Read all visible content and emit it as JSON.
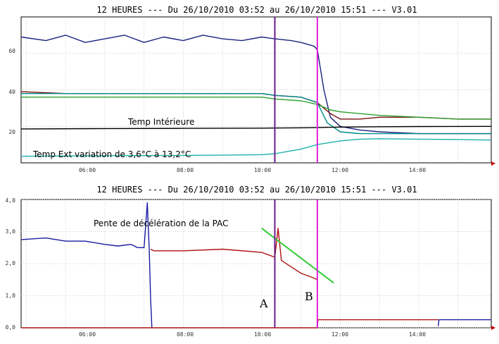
{
  "chart_data": [
    {
      "type": "line",
      "title": "12 HEURES --- Du 26/10/2010 03:52 au 26/10/2010 15:51 --- V3.01",
      "xlim": [
        "03:52",
        "15:51"
      ],
      "ylim": [
        0,
        80
      ],
      "y_ticks": [
        "20",
        "40",
        "60"
      ],
      "x_ticks": [
        "06:00",
        "08:00",
        "10:00",
        "12:00",
        "14:00"
      ],
      "grid": true,
      "annotations": [
        {
          "text": "Temp Intérieure"
        },
        {
          "text": "Temp Ext variation de 3,6°C à 13,2°C"
        }
      ],
      "markers": [
        {
          "x": "10:20",
          "color": "#6a1b8a"
        },
        {
          "x": "11:25",
          "color": "#e020e0"
        }
      ],
      "series": [
        {
          "color": "#1a237e",
          "x": [
            "03:52",
            "04:30",
            "05:00",
            "05:30",
            "06:00",
            "06:30",
            "07:00",
            "07:30",
            "08:00",
            "08:30",
            "09:00",
            "09:30",
            "10:00",
            "10:20",
            "10:45",
            "11:00",
            "11:20",
            "11:25",
            "11:35",
            "11:45",
            "12:00",
            "12:30",
            "13:00",
            "14:00",
            "15:00",
            "15:51"
          ],
          "values": [
            69,
            67,
            70,
            66,
            68,
            70,
            66,
            69,
            67,
            70,
            68,
            67,
            69,
            68,
            67,
            66,
            64,
            62,
            40,
            25,
            20,
            18,
            17,
            16,
            16,
            16
          ]
        },
        {
          "color": "#7a1010",
          "x": [
            "03:52",
            "05:00",
            "06:00",
            "07:00",
            "08:00",
            "09:00",
            "10:00",
            "10:20",
            "11:00",
            "11:25",
            "11:45",
            "12:00",
            "12:30",
            "13:00",
            "14:00",
            "15:00",
            "15:51"
          ],
          "values": [
            39,
            38,
            38,
            38,
            38,
            38,
            38,
            37,
            36,
            33,
            27,
            24,
            24,
            25,
            25,
            24,
            24
          ]
        },
        {
          "color": "#2ca02c",
          "x": [
            "03:52",
            "05:00",
            "06:00",
            "07:00",
            "08:00",
            "09:00",
            "10:00",
            "10:20",
            "11:00",
            "11:25",
            "11:45",
            "12:00",
            "13:00",
            "14:00",
            "15:00",
            "15:51"
          ],
          "values": [
            36,
            36,
            36,
            36,
            36,
            36,
            36,
            35,
            34,
            32,
            29,
            28,
            26,
            25,
            24,
            24
          ]
        },
        {
          "color": "#008b8b",
          "x": [
            "03:52",
            "05:00",
            "06:00",
            "07:00",
            "08:00",
            "09:00",
            "10:00",
            "10:20",
            "11:00",
            "11:25",
            "11:40",
            "12:00",
            "12:30",
            "13:00",
            "14:00",
            "15:00",
            "15:51"
          ],
          "values": [
            38,
            38,
            38,
            38,
            38,
            38,
            38,
            37,
            36,
            33,
            22,
            17,
            16,
            16,
            16,
            16,
            16
          ]
        },
        {
          "color": "#000000",
          "x": [
            "03:52",
            "06:00",
            "08:00",
            "10:00",
            "11:00",
            "12:00",
            "13:00",
            "14:00",
            "15:51"
          ],
          "values": [
            18.6,
            18.8,
            18.9,
            19.0,
            19.2,
            19.6,
            19.8,
            19.9,
            20.0
          ]
        },
        {
          "color": "#20b2aa",
          "x": [
            "03:52",
            "05:00",
            "06:00",
            "07:00",
            "08:00",
            "09:00",
            "10:00",
            "10:20",
            "11:00",
            "11:25",
            "12:00",
            "12:30",
            "13:00",
            "14:00",
            "15:00",
            "15:51"
          ],
          "values": [
            3.6,
            3.8,
            3.9,
            4.0,
            4.1,
            4.2,
            4.5,
            5.0,
            7.5,
            10.0,
            12.0,
            13.0,
            13.2,
            13.0,
            12.8,
            12.5
          ]
        }
      ]
    },
    {
      "type": "line",
      "title": "12 HEURES --- Du 26/10/2010 03:52 au 26/10/2010 15:51 --- V3.01",
      "xlim": [
        "03:52",
        "15:51"
      ],
      "ylim": [
        0,
        4
      ],
      "y_ticks": [
        "0,0",
        "1,0",
        "2,0",
        "3,0",
        "4,0"
      ],
      "x_ticks": [
        "06:00",
        "08:00",
        "10:00",
        "12:00",
        "14:00"
      ],
      "grid": true,
      "annotations": [
        {
          "text": "Pente de décélération de la PAC"
        },
        {
          "text": "A"
        },
        {
          "text": "B"
        }
      ],
      "markers": [
        {
          "x": "10:20",
          "color": "#6a1b8a"
        },
        {
          "x": "11:25",
          "color": "#e020e0"
        }
      ],
      "trend_line": {
        "color": "#33cc33",
        "x": [
          "10:00",
          "11:50"
        ],
        "values": [
          3.1,
          1.4
        ]
      },
      "series": [
        {
          "color": "#1a1aa0",
          "x": [
            "03:52",
            "04:30",
            "05:00",
            "05:30",
            "06:00",
            "06:20",
            "06:40",
            "06:50",
            "07:00",
            "07:05",
            "07:08",
            "07:10",
            "07:12"
          ],
          "values": [
            2.75,
            2.8,
            2.7,
            2.7,
            2.6,
            2.55,
            2.6,
            2.5,
            2.5,
            3.9,
            2.4,
            0.9,
            0.0
          ]
        },
        {
          "color": "#b01010",
          "x": [
            "07:10",
            "07:15",
            "08:00",
            "09:00",
            "10:00",
            "10:20",
            "10:25",
            "10:30",
            "10:45",
            "11:00",
            "11:20",
            "11:25"
          ],
          "values": [
            2.45,
            2.4,
            2.4,
            2.45,
            2.35,
            2.2,
            3.1,
            2.1,
            1.9,
            1.7,
            1.55,
            1.5
          ]
        },
        {
          "color": "#b01010",
          "x": [
            "03:52",
            "07:10",
            "11:25",
            "11:26",
            "12:00",
            "13:00",
            "14:00",
            "14:30"
          ],
          "values": [
            0.0,
            0.0,
            0.0,
            0.25,
            0.25,
            0.25,
            0.25,
            0.25
          ]
        },
        {
          "color": "#1a1aa0",
          "x": [
            "14:30",
            "14:31",
            "15:00",
            "15:51"
          ],
          "values": [
            0.05,
            0.25,
            0.25,
            0.25
          ]
        }
      ]
    }
  ]
}
